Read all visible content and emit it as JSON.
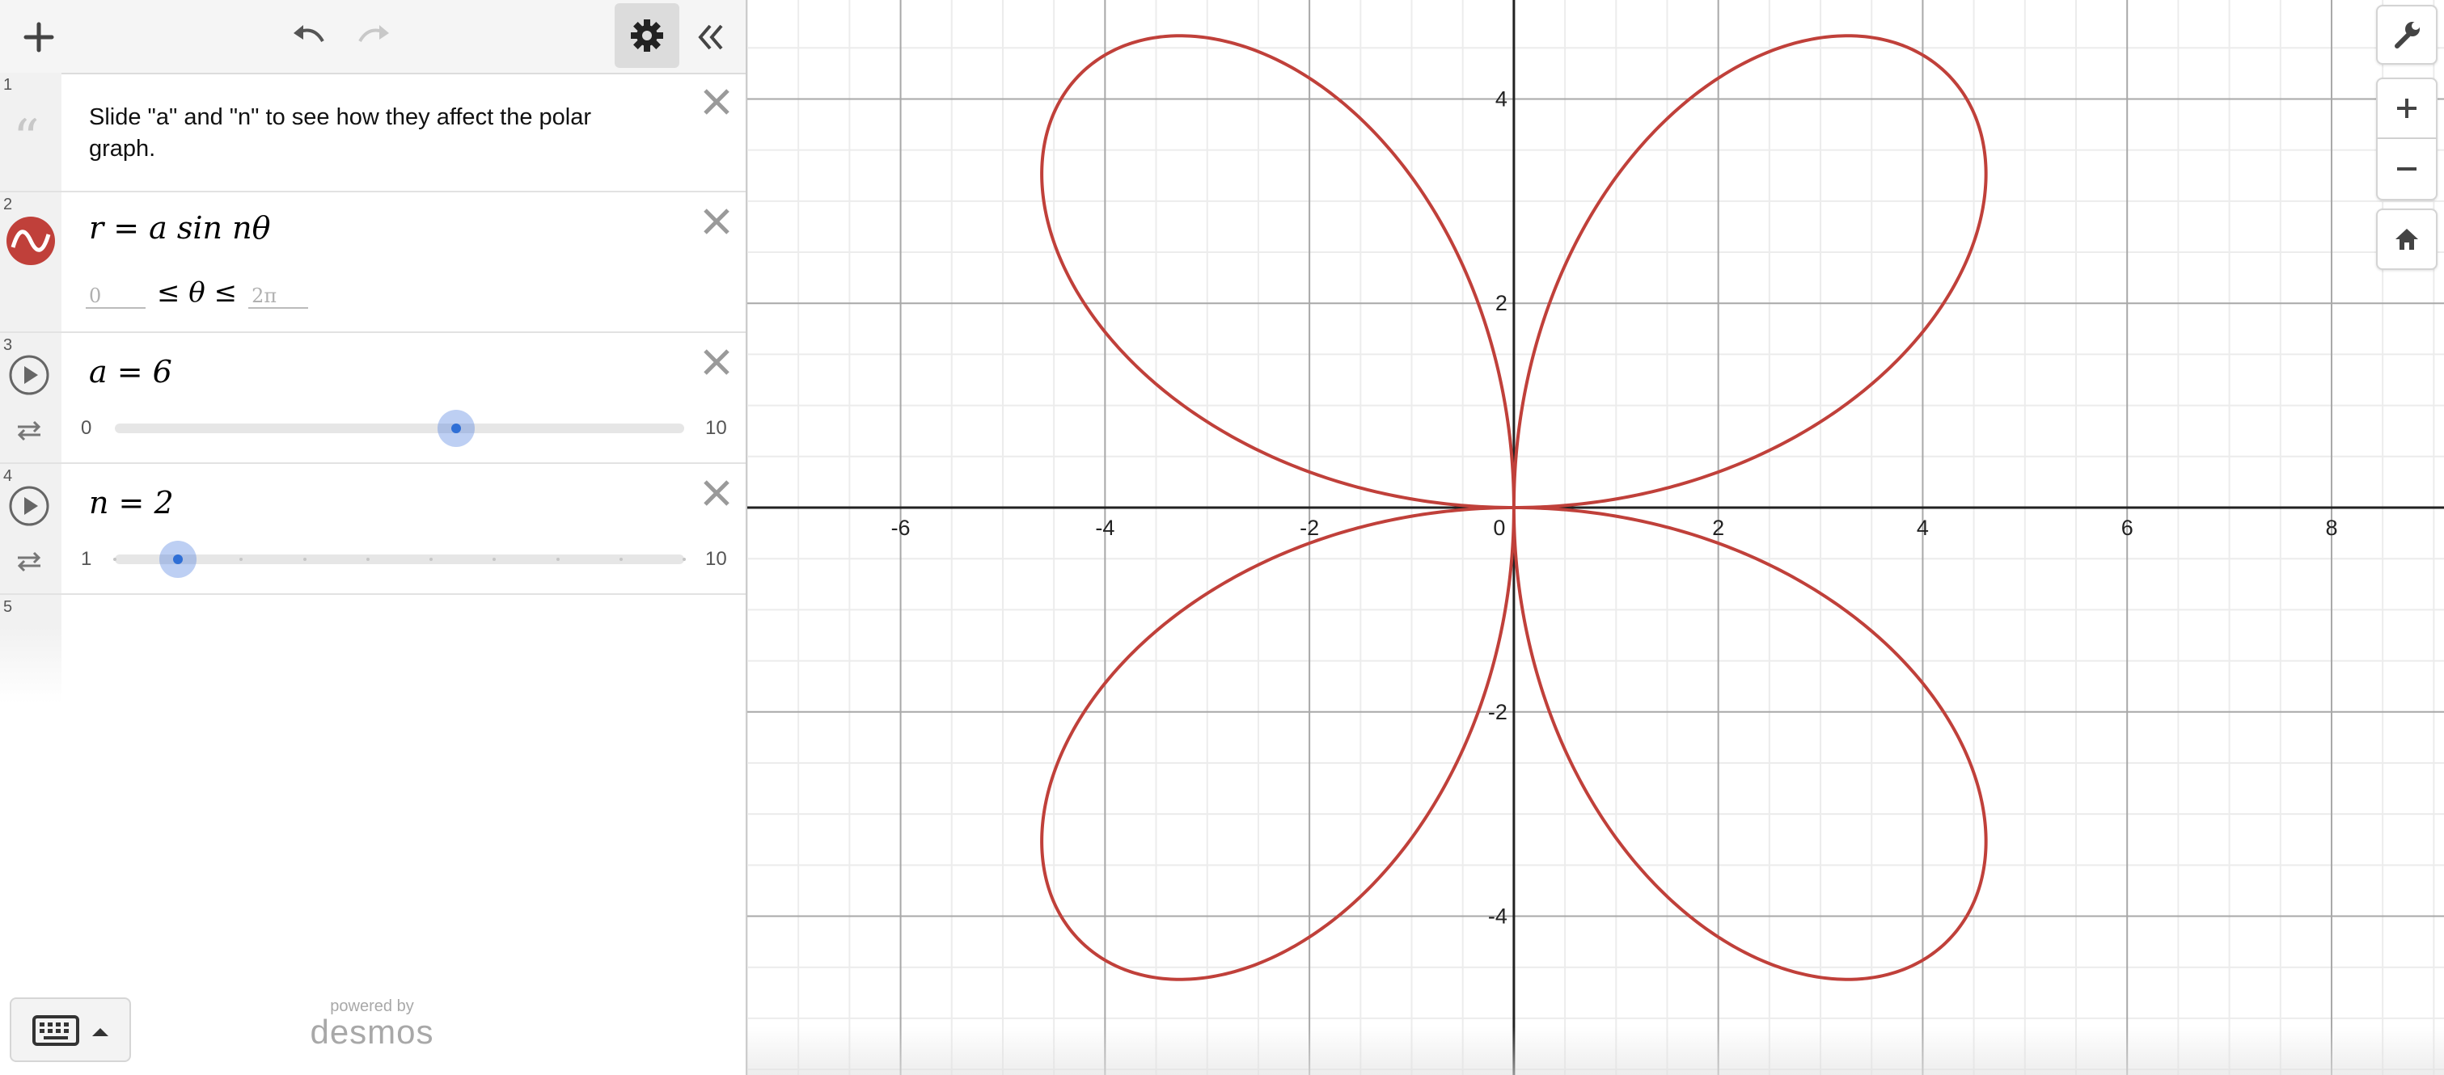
{
  "app": {
    "name": "Desmos Graphing Calculator"
  },
  "toolbar": {
    "add_icon": "plus-icon",
    "undo_icon": "undo-icon",
    "redo_icon": "redo-icon",
    "settings_icon": "gear-icon",
    "collapse_icon": "double-chevron-left-icon"
  },
  "expressions": [
    {
      "index": "1",
      "type": "note",
      "text": "Slide \"a\" and \"n\" to see how they affect the polar graph."
    },
    {
      "index": "2",
      "type": "expression",
      "latex": "r = a sin nθ",
      "color": "#c0403a",
      "domain": {
        "min_placeholder": "0",
        "max_placeholder": "2π",
        "variable": "≤ θ ≤"
      }
    },
    {
      "index": "3",
      "type": "slider",
      "variable": "a",
      "label": "a = 6",
      "value": 6,
      "min": "0",
      "max": "10"
    },
    {
      "index": "4",
      "type": "slider",
      "variable": "n",
      "label": "n = 2",
      "value": 2,
      "min": "1",
      "max": "10"
    },
    {
      "index": "5",
      "type": "empty"
    }
  ],
  "footer": {
    "keyboard_icon": "keyboard-icon",
    "powered_by": "powered by",
    "logo": "desmos"
  },
  "graph": {
    "x_ticks": [
      "-6",
      "-4",
      "-2",
      "0",
      "2",
      "4",
      "6",
      "8"
    ],
    "y_ticks": [
      "4",
      "2",
      "-2",
      "-4"
    ],
    "curve_color": "#c0403a",
    "tools": [
      "wrench-icon",
      "zoom-in-icon",
      "zoom-out-icon",
      "home-icon"
    ]
  },
  "chart_data": {
    "type": "line",
    "equation": "r = a sin nθ",
    "parameters": {
      "a": 6,
      "n": 2
    },
    "theta_range": [
      0,
      6.2832
    ],
    "xlim": [
      -7.5,
      9.1
    ],
    "ylim": [
      -5.5,
      5.0
    ],
    "grid": true
  }
}
